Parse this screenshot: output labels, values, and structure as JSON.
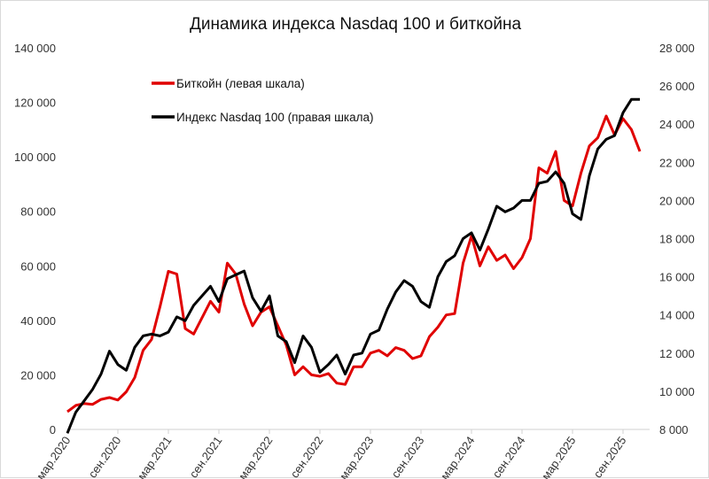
{
  "chart_data": {
    "type": "line",
    "title": "Динамика индекса Nasdaq 100 и биткойна",
    "x_start": "2020-03",
    "x_step": "month",
    "x_tick_labels": [
      "мар.2020",
      "сен.2020",
      "мар.2021",
      "сен.2021",
      "мар.2022",
      "сен.2022",
      "мар.2023",
      "сен.2023",
      "мар.2024",
      "сен.2024",
      "мар.2025",
      "сен.2025"
    ],
    "left_axis": {
      "ylim": [
        0,
        140000
      ],
      "ticks": [
        0,
        20000,
        40000,
        60000,
        80000,
        100000,
        120000,
        140000
      ],
      "tick_labels": [
        "0",
        "20 000",
        "40 000",
        "60 000",
        "80 000",
        "100 000",
        "120 000",
        "140 000"
      ]
    },
    "right_axis": {
      "ylim": [
        8000,
        28000
      ],
      "ticks": [
        8000,
        10000,
        12000,
        14000,
        16000,
        18000,
        20000,
        22000,
        24000,
        26000,
        28000
      ],
      "tick_labels": [
        "8 000",
        "10 000",
        "12 000",
        "14 000",
        "16 000",
        "18 000",
        "20 000",
        "22 000",
        "24 000",
        "26 000",
        "28 000"
      ]
    },
    "legend_position": "top-left",
    "series": [
      {
        "name": "Биткойн (левая шкала)",
        "axis": "left",
        "color": "#e00000",
        "values": [
          6500,
          8800,
          9500,
          9200,
          11000,
          11700,
          10800,
          13800,
          19000,
          29000,
          33000,
          45000,
          58000,
          57000,
          37000,
          35000,
          41000,
          47000,
          43000,
          61000,
          57000,
          46000,
          38000,
          43000,
          45000,
          38000,
          31000,
          20000,
          23000,
          20000,
          19500,
          20500,
          17000,
          16500,
          23000,
          23000,
          28000,
          29000,
          27000,
          30000,
          29000,
          26000,
          27000,
          34000,
          37500,
          42000,
          42500,
          61000,
          71000,
          60000,
          67000,
          62000,
          64000,
          59000,
          63000,
          70000,
          96000,
          94000,
          102000,
          84000,
          82000,
          94000,
          104000,
          107000,
          115000,
          108000,
          114000,
          110000,
          102000
        ]
      },
      {
        "name": "Индекс Nasdaq 100 (правая шкала)",
        "axis": "right",
        "color": "#000000",
        "values": [
          7800,
          8900,
          9500,
          10100,
          10900,
          12100,
          11400,
          11100,
          12300,
          12900,
          13000,
          12900,
          13100,
          13900,
          13700,
          14500,
          15000,
          15500,
          14700,
          15900,
          16100,
          16300,
          14900,
          14200,
          15000,
          12900,
          12600,
          11500,
          12900,
          12300,
          11000,
          11400,
          11900,
          10900,
          11900,
          12000,
          13000,
          13200,
          14300,
          15200,
          15800,
          15500,
          14700,
          14400,
          16000,
          16800,
          17100,
          18000,
          18300,
          17400,
          18500,
          19700,
          19400,
          19600,
          20000,
          20000,
          20900,
          21000,
          21500,
          20900,
          19300,
          19000,
          21300,
          22700,
          23200,
          23400,
          24600,
          25300,
          25300
        ]
      }
    ]
  }
}
